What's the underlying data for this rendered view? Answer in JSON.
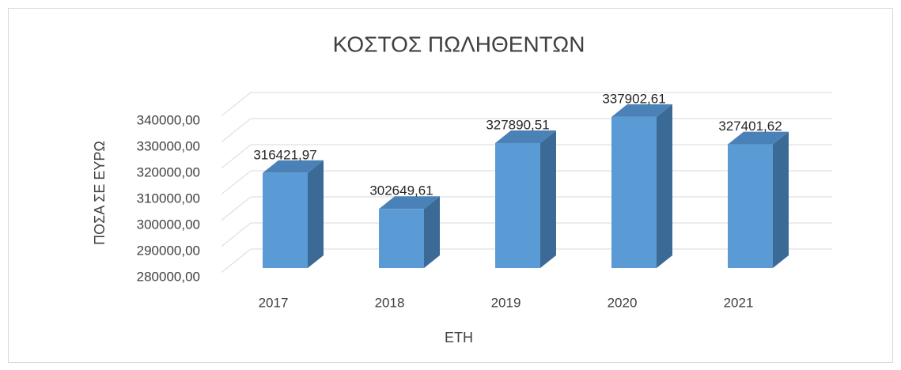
{
  "chart_data": {
    "type": "bar3d",
    "title": "ΚΟΣΤΟΣ ΠΩΛΗΘΕΝΤΩΝ",
    "x_label": "ΕΤΗ",
    "y_label": "ΠΟΣΑ ΣΕ ΕΥΡΩ",
    "categories": [
      "2017",
      "2018",
      "2019",
      "2020",
      "2021"
    ],
    "values": [
      316421.97,
      302649.61,
      327890.51,
      337902.61,
      327401.62
    ],
    "value_labels": [
      "316421,97",
      "302649,61",
      "327890,51",
      "337902,61",
      "327401,62"
    ],
    "color": "#5b9bd5",
    "ylim": [
      280000,
      340000
    ],
    "yticks": [
      {
        "value": 280000,
        "label": "280000,00"
      },
      {
        "value": 290000,
        "label": "290000,00"
      },
      {
        "value": 300000,
        "label": "300000,00"
      },
      {
        "value": 310000,
        "label": "310000,00"
      },
      {
        "value": 320000,
        "label": "320000,00"
      },
      {
        "value": 330000,
        "label": "330000,00"
      },
      {
        "value": 340000,
        "label": "340000,00"
      }
    ],
    "grid": true
  }
}
